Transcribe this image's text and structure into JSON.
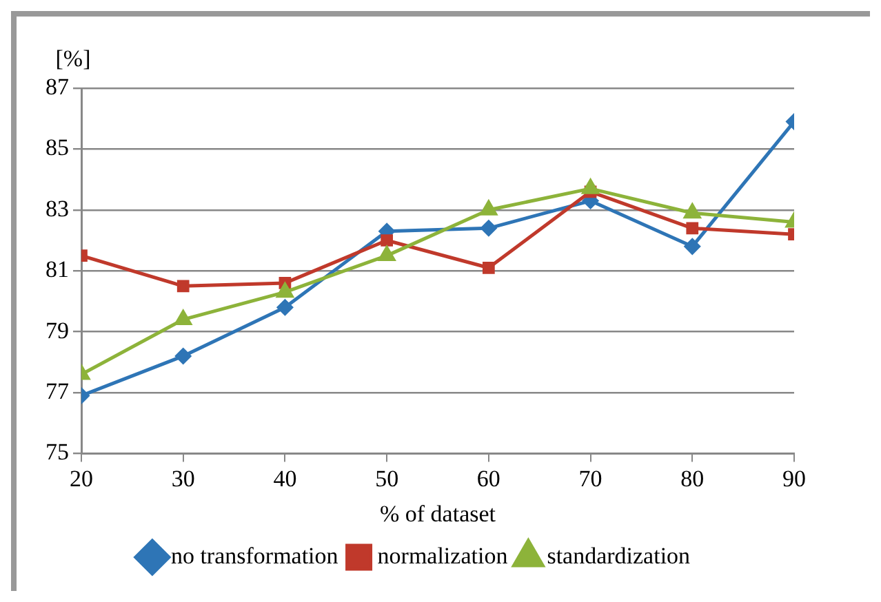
{
  "chart_data": {
    "type": "line",
    "xlabel": "% of dataset",
    "ylabel": "[%]",
    "x": [
      20,
      30,
      40,
      50,
      60,
      70,
      80,
      90
    ],
    "xlim": [
      20,
      90
    ],
    "xticks": [
      20,
      30,
      40,
      50,
      60,
      70,
      80,
      90
    ],
    "ylim": [
      75,
      87
    ],
    "yticks": [
      75,
      77,
      79,
      81,
      83,
      85,
      87
    ],
    "grid": "y",
    "legend": "bottom",
    "line_style": "solid",
    "series": [
      {
        "name": "no transformation",
        "color": "#2e75b6",
        "marker": "diamond",
        "values": [
          76.9,
          78.2,
          79.8,
          82.3,
          82.4,
          83.3,
          81.8,
          85.9
        ]
      },
      {
        "name": "normalization",
        "color": "#c0392b",
        "marker": "square",
        "values": [
          81.5,
          80.5,
          80.6,
          82.0,
          81.1,
          83.6,
          82.4,
          82.2
        ]
      },
      {
        "name": "standardization",
        "color": "#8db33a",
        "marker": "triangle",
        "values": [
          77.6,
          79.4,
          80.3,
          81.5,
          83.0,
          83.7,
          82.9,
          82.6
        ]
      }
    ]
  }
}
